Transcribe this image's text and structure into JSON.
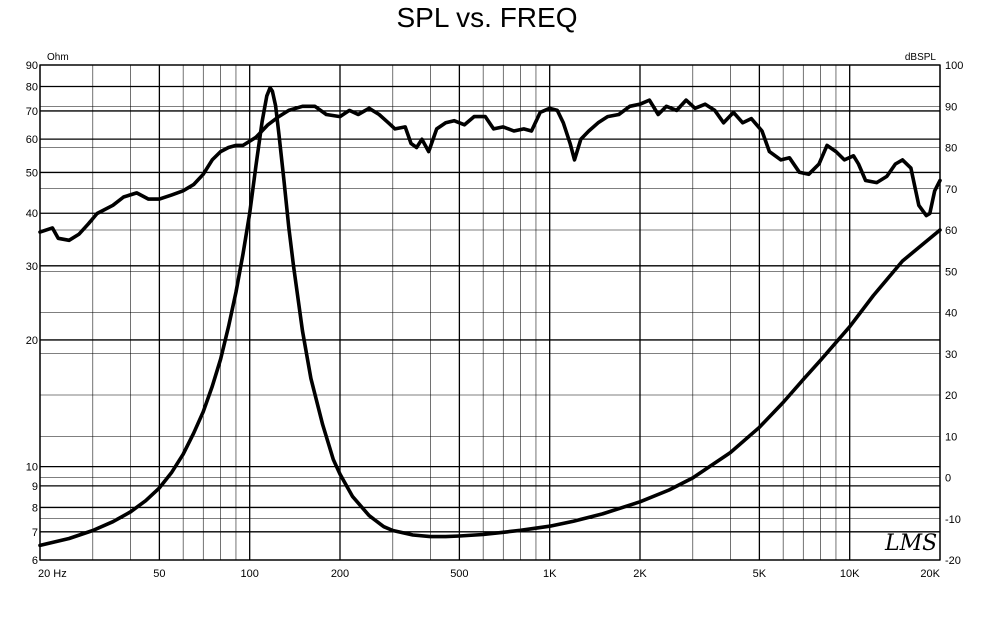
{
  "chart_data": {
    "type": "line",
    "title": "SPL vs. FREQ",
    "x_scale": "log",
    "x_range_hz": [
      20,
      20000
    ],
    "x_tick_labels": [
      {
        "hz": 20,
        "label": "20 Hz"
      },
      {
        "hz": 50,
        "label": "50"
      },
      {
        "hz": 100,
        "label": "100"
      },
      {
        "hz": 200,
        "label": "200"
      },
      {
        "hz": 500,
        "label": "500"
      },
      {
        "hz": 1000,
        "label": "1K"
      },
      {
        "hz": 2000,
        "label": "2K"
      },
      {
        "hz": 5000,
        "label": "5K"
      },
      {
        "hz": 10000,
        "label": "10K"
      },
      {
        "hz": 20000,
        "label": "20K"
      }
    ],
    "left_axis": {
      "unit": "Ohm",
      "scale": "log",
      "range": [
        6,
        90
      ],
      "ticks": [
        6,
        7,
        8,
        9,
        10,
        20,
        30,
        40,
        50,
        60,
        70,
        80,
        90
      ]
    },
    "right_axis": {
      "unit": "dBSPL",
      "scale": "linear",
      "range": [
        -20,
        100
      ],
      "ticks": [
        -20,
        -10,
        0,
        10,
        20,
        30,
        40,
        50,
        60,
        70,
        80,
        90,
        100
      ]
    },
    "grid": true,
    "logo_text": "LMS",
    "series": [
      {
        "axis": "right",
        "unit": "dBSPL",
        "points": [
          [
            20,
            59.5
          ],
          [
            22,
            60.5
          ],
          [
            23,
            58
          ],
          [
            25,
            57.5
          ],
          [
            27,
            59
          ],
          [
            29,
            61.5
          ],
          [
            31,
            64
          ],
          [
            35,
            66
          ],
          [
            38,
            68
          ],
          [
            42,
            69
          ],
          [
            46,
            67.5
          ],
          [
            50,
            67.5
          ],
          [
            55,
            68.5
          ],
          [
            60,
            69.5
          ],
          [
            65,
            71
          ],
          [
            70,
            73.5
          ],
          [
            75,
            77
          ],
          [
            80,
            79
          ],
          [
            85,
            80
          ],
          [
            90,
            80.5
          ],
          [
            95,
            80.5
          ],
          [
            105,
            82.5
          ],
          [
            115,
            85.5
          ],
          [
            125,
            87.5
          ],
          [
            135,
            89
          ],
          [
            150,
            90
          ],
          [
            165,
            90
          ],
          [
            180,
            88
          ],
          [
            200,
            87.5
          ],
          [
            215,
            89
          ],
          [
            230,
            88
          ],
          [
            250,
            89.5
          ],
          [
            270,
            88
          ],
          [
            290,
            86
          ],
          [
            305,
            84.5
          ],
          [
            330,
            85
          ],
          [
            345,
            81
          ],
          [
            360,
            80
          ],
          [
            375,
            82
          ],
          [
            395,
            79
          ],
          [
            420,
            84.5
          ],
          [
            450,
            86
          ],
          [
            480,
            86.5
          ],
          [
            520,
            85.5
          ],
          [
            560,
            87.5
          ],
          [
            610,
            87.5
          ],
          [
            650,
            84.5
          ],
          [
            700,
            85
          ],
          [
            760,
            84
          ],
          [
            820,
            84.5
          ],
          [
            870,
            84
          ],
          [
            930,
            88.5
          ],
          [
            1000,
            89.5
          ],
          [
            1060,
            89
          ],
          [
            1110,
            86
          ],
          [
            1170,
            81
          ],
          [
            1210,
            77
          ],
          [
            1270,
            82
          ],
          [
            1350,
            84
          ],
          [
            1450,
            86
          ],
          [
            1560,
            87.5
          ],
          [
            1700,
            88
          ],
          [
            1850,
            90
          ],
          [
            2000,
            90.5
          ],
          [
            2150,
            91.5
          ],
          [
            2300,
            88
          ],
          [
            2450,
            90
          ],
          [
            2650,
            89
          ],
          [
            2850,
            91.5
          ],
          [
            3050,
            89.5
          ],
          [
            3300,
            90.5
          ],
          [
            3550,
            89
          ],
          [
            3800,
            86
          ],
          [
            4100,
            88.5
          ],
          [
            4400,
            86
          ],
          [
            4700,
            87
          ],
          [
            5100,
            84
          ],
          [
            5400,
            79
          ],
          [
            5900,
            77
          ],
          [
            6300,
            77.5
          ],
          [
            6800,
            74
          ],
          [
            7300,
            73.5
          ],
          [
            7900,
            76
          ],
          [
            8400,
            80.5
          ],
          [
            9000,
            79
          ],
          [
            9600,
            77
          ],
          [
            10300,
            78
          ],
          [
            10700,
            76
          ],
          [
            11300,
            72
          ],
          [
            12300,
            71.5
          ],
          [
            13300,
            73
          ],
          [
            14200,
            76
          ],
          [
            15000,
            77
          ],
          [
            16000,
            75
          ],
          [
            17000,
            66
          ],
          [
            18000,
            63.5
          ],
          [
            18500,
            64
          ],
          [
            19200,
            69.5
          ],
          [
            20000,
            72
          ]
        ]
      },
      {
        "axis": "left",
        "unit": "Ohm",
        "points": [
          [
            20,
            6.5
          ],
          [
            25,
            6.75
          ],
          [
            30,
            7.05
          ],
          [
            35,
            7.4
          ],
          [
            40,
            7.8
          ],
          [
            45,
            8.3
          ],
          [
            50,
            8.9
          ],
          [
            55,
            9.7
          ],
          [
            60,
            10.7
          ],
          [
            65,
            12.0
          ],
          [
            70,
            13.5
          ],
          [
            75,
            15.5
          ],
          [
            80,
            18.0
          ],
          [
            85,
            21.5
          ],
          [
            90,
            26.0
          ],
          [
            95,
            32.0
          ],
          [
            100,
            40.0
          ],
          [
            105,
            52.0
          ],
          [
            110,
            66.0
          ],
          [
            114,
            76.0
          ],
          [
            117,
            79.5
          ],
          [
            119,
            78.0
          ],
          [
            122,
            72.0
          ],
          [
            125,
            62.0
          ],
          [
            130,
            48.0
          ],
          [
            135,
            37.0
          ],
          [
            140,
            30.0
          ],
          [
            150,
            21.0
          ],
          [
            160,
            16.2
          ],
          [
            175,
            12.6
          ],
          [
            190,
            10.4
          ],
          [
            200,
            9.6
          ],
          [
            220,
            8.5
          ],
          [
            250,
            7.65
          ],
          [
            280,
            7.2
          ],
          [
            300,
            7.05
          ],
          [
            350,
            6.88
          ],
          [
            400,
            6.82
          ],
          [
            450,
            6.82
          ],
          [
            500,
            6.84
          ],
          [
            600,
            6.9
          ],
          [
            700,
            6.98
          ],
          [
            800,
            7.06
          ],
          [
            1000,
            7.22
          ],
          [
            1200,
            7.42
          ],
          [
            1500,
            7.72
          ],
          [
            2000,
            8.25
          ],
          [
            2500,
            8.8
          ],
          [
            3000,
            9.4
          ],
          [
            4000,
            10.8
          ],
          [
            5000,
            12.4
          ],
          [
            6000,
            14.2
          ],
          [
            7000,
            16.1
          ],
          [
            8000,
            17.9
          ],
          [
            10000,
            21.5
          ],
          [
            12000,
            25.5
          ],
          [
            15000,
            30.8
          ],
          [
            20000,
            36.5
          ]
        ]
      }
    ]
  }
}
